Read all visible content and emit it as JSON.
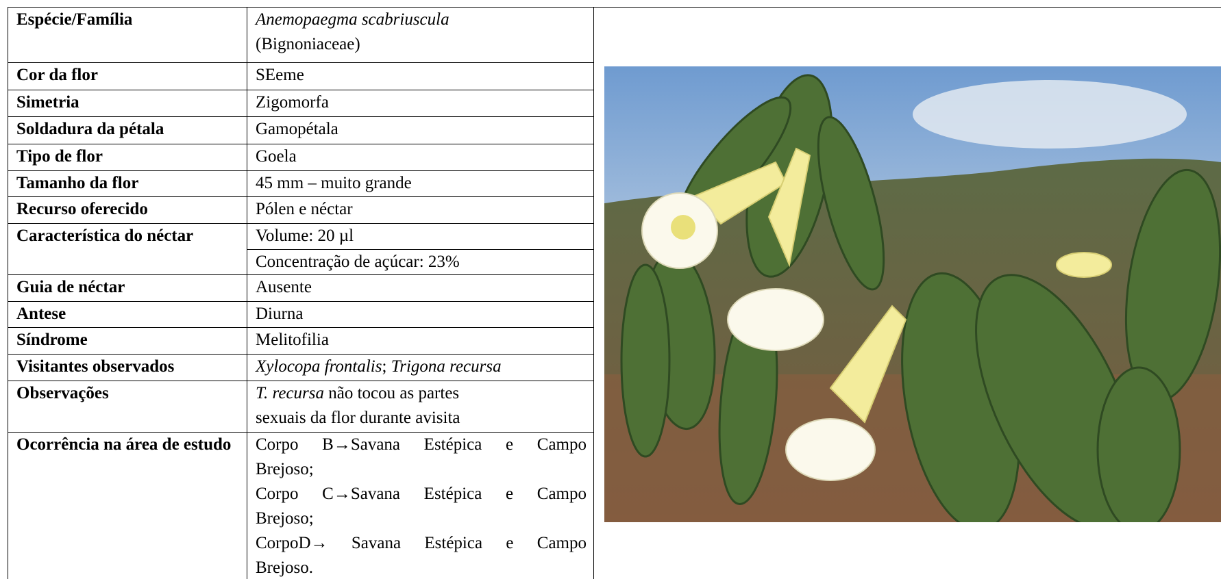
{
  "table": {
    "rows": [
      {
        "label": "Espécie/Família",
        "cells": [
          [
            [
              {
                "text": "Anemopaegma scabriuscula",
                "italic": true
              }
            ],
            [
              {
                "text": "(Bignoniaceae)"
              }
            ]
          ]
        ]
      },
      {
        "label": "Cor da flor",
        "cells": [
          [
            [
              {
                "text": "SEeme"
              }
            ]
          ]
        ]
      },
      {
        "label": "Simetria",
        "cells": [
          [
            [
              {
                "text": "Zigomorfa"
              }
            ]
          ]
        ]
      },
      {
        "label": "Soldadura da pétala",
        "cells": [
          [
            [
              {
                "text": "Gamopétala"
              }
            ]
          ]
        ]
      },
      {
        "label": "Tipo de flor",
        "cells": [
          [
            [
              {
                "text": "Goela"
              }
            ]
          ]
        ]
      },
      {
        "label": "Tamanho da flor",
        "cells": [
          [
            [
              {
                "text": "45 mm – muito grande"
              }
            ]
          ]
        ]
      },
      {
        "label": "Recurso oferecido",
        "cells": [
          [
            [
              {
                "text": "Pólen e néctar"
              }
            ]
          ]
        ]
      },
      {
        "label": "Característica do néctar",
        "cells": [
          [
            [
              {
                "text": "Volume: 20 µl"
              }
            ]
          ],
          [
            [
              {
                "text": "Concentração de açúcar: 23%"
              }
            ]
          ]
        ]
      },
      {
        "label": "Guia de néctar",
        "cells": [
          [
            [
              {
                "text": "Ausente"
              }
            ]
          ]
        ]
      },
      {
        "label": "Antese",
        "cells": [
          [
            [
              {
                "text": "Diurna"
              }
            ]
          ]
        ]
      },
      {
        "label": "Síndrome",
        "cells": [
          [
            [
              {
                "text": "Melitofilia"
              }
            ]
          ]
        ]
      },
      {
        "label": "Visitantes observados",
        "cells": [
          [
            [
              {
                "text": "Xylocopa frontalis",
                "italic": true
              },
              {
                "text": "; "
              },
              {
                "text": "Trigona recursa",
                "italic": true
              }
            ]
          ]
        ]
      },
      {
        "label": "Observações",
        "cells": [
          [
            [
              {
                "text": "T. recursa",
                "italic": true
              },
              {
                "text": " não tocou as partes"
              }
            ],
            [
              {
                "text": "sexuais da flor durante avisita"
              }
            ]
          ]
        ]
      },
      {
        "label": "Ocorrência na área de estudo",
        "cells": [
          [
            [
              {
                "text": "Corpo B→Savana Estépica e Campo"
              }
            ],
            [
              {
                "text": "Brejoso;"
              }
            ],
            [
              {
                "text": "Corpo C→Savana Estépica e Campo"
              }
            ],
            [
              {
                "text": "Brejoso;"
              }
            ],
            [
              {
                "text": "CorpoD→ Savana Estépica e Campo"
              }
            ],
            [
              {
                "text": "Brejoso."
              }
            ]
          ]
        ]
      }
    ]
  }
}
